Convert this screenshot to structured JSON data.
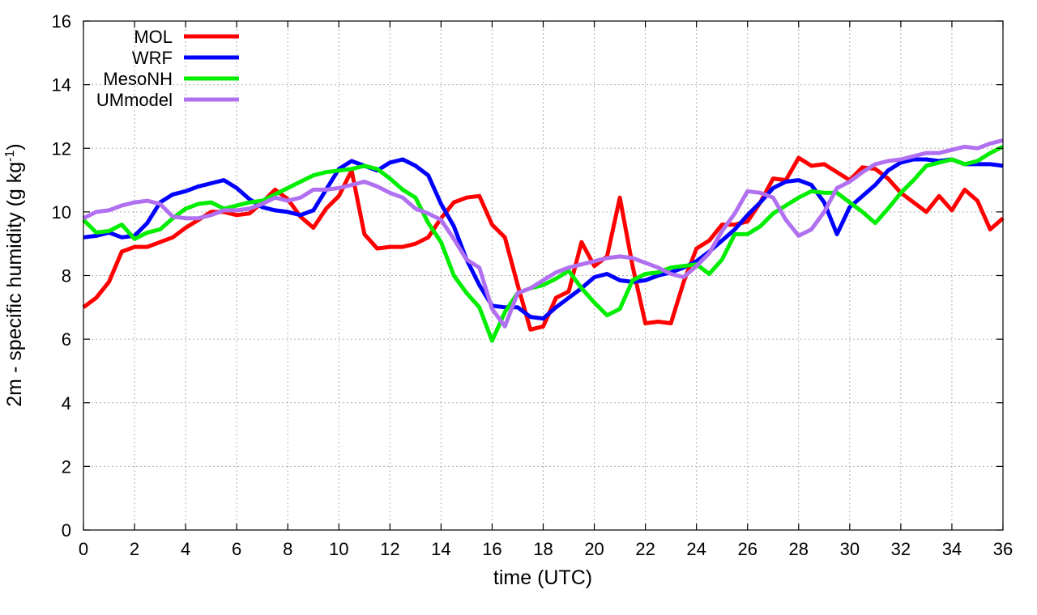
{
  "chart_data": {
    "type": "line",
    "xlabel": "time (UTC)",
    "ylabel": {
      "main": "2m - specific humidity (g kg",
      "sup": "-1",
      "end": ")"
    },
    "xlim": [
      0,
      36
    ],
    "ylim": [
      0,
      16
    ],
    "xticks": [
      0,
      2,
      4,
      6,
      8,
      10,
      12,
      14,
      16,
      18,
      20,
      22,
      24,
      26,
      28,
      30,
      32,
      34,
      36
    ],
    "yticks": [
      0,
      2,
      4,
      6,
      8,
      10,
      12,
      14,
      16
    ],
    "grid": true,
    "legend_position": "top-left",
    "series": [
      {
        "name": "MOL",
        "color": "#ff0000",
        "x": [
          0,
          0.5,
          1,
          1.5,
          2,
          2.5,
          3,
          3.5,
          4,
          4.5,
          5,
          5.5,
          6,
          6.5,
          7,
          7.5,
          8,
          8.5,
          9,
          9.5,
          10,
          10.5,
          11,
          11.5,
          12,
          12.5,
          13,
          13.5,
          14,
          14.5,
          15,
          15.5,
          16,
          16.5,
          17,
          17.5,
          18,
          18.5,
          19,
          19.5,
          20,
          20.5,
          21,
          21.5,
          22,
          22.5,
          23,
          23.5,
          24,
          24.5,
          25,
          25.5,
          26,
          26.5,
          27,
          27.5,
          28,
          28.5,
          29,
          29.5,
          30,
          30.5,
          31,
          31.5,
          32,
          32.5,
          33,
          33.5,
          34,
          34.5,
          35,
          35.5,
          36
        ],
        "y": [
          7.0,
          7.3,
          7.8,
          8.75,
          8.9,
          8.9,
          9.05,
          9.2,
          9.5,
          9.75,
          10.0,
          10.0,
          9.9,
          9.95,
          10.3,
          10.7,
          10.4,
          9.85,
          9.5,
          10.1,
          10.5,
          11.3,
          9.3,
          8.85,
          8.9,
          8.9,
          9.0,
          9.2,
          9.8,
          10.3,
          10.45,
          10.5,
          9.6,
          9.2,
          7.7,
          6.3,
          6.4,
          7.3,
          7.5,
          9.05,
          8.3,
          8.6,
          10.45,
          8.3,
          6.5,
          6.55,
          6.5,
          7.8,
          8.85,
          9.1,
          9.6,
          9.6,
          9.7,
          10.3,
          11.05,
          11.0,
          11.7,
          11.45,
          11.5,
          11.25,
          11.0,
          11.4,
          11.35,
          11.05,
          10.6,
          10.3,
          10.0,
          10.5,
          10.05,
          10.7,
          10.35,
          9.45,
          9.8
        ]
      },
      {
        "name": "WRF",
        "color": "#0000ff",
        "x": [
          0,
          0.5,
          1,
          1.5,
          2,
          2.5,
          3,
          3.5,
          4,
          4.5,
          5,
          5.5,
          6,
          6.5,
          7,
          7.5,
          8,
          8.5,
          9,
          9.5,
          10,
          10.5,
          11,
          11.5,
          12,
          12.5,
          13,
          13.5,
          14,
          14.5,
          15,
          15.5,
          16,
          16.5,
          17,
          17.5,
          18,
          18.5,
          19,
          19.5,
          20,
          20.5,
          21,
          21.5,
          22,
          22.5,
          23,
          23.5,
          24,
          24.5,
          25,
          25.5,
          26,
          26.5,
          27,
          27.5,
          28,
          28.5,
          29,
          29.5,
          30,
          30.5,
          31,
          31.5,
          32,
          32.5,
          33,
          33.5,
          34,
          34.5,
          35,
          35.5,
          36
        ],
        "y": [
          9.2,
          9.25,
          9.35,
          9.2,
          9.25,
          9.65,
          10.3,
          10.55,
          10.65,
          10.8,
          10.9,
          11.0,
          10.75,
          10.4,
          10.15,
          10.05,
          10.0,
          9.9,
          10.05,
          10.7,
          11.35,
          11.6,
          11.45,
          11.3,
          11.55,
          11.65,
          11.45,
          11.15,
          10.25,
          9.55,
          8.5,
          7.7,
          7.05,
          7.0,
          7.0,
          6.7,
          6.65,
          7.0,
          7.3,
          7.6,
          7.95,
          8.05,
          7.85,
          7.8,
          7.85,
          8.0,
          8.1,
          8.25,
          8.45,
          8.75,
          9.1,
          9.45,
          9.9,
          10.3,
          10.75,
          10.95,
          11.0,
          10.85,
          10.3,
          9.3,
          10.15,
          10.5,
          10.85,
          11.3,
          11.55,
          11.65,
          11.65,
          11.6,
          11.65,
          11.5,
          11.5,
          11.5,
          11.45
        ]
      },
      {
        "name": "MesoNH",
        "color": "#00ee00",
        "x": [
          0,
          0.5,
          1,
          1.5,
          2,
          2.5,
          3,
          3.5,
          4,
          4.5,
          5,
          5.5,
          6,
          6.5,
          7,
          7.5,
          8,
          8.5,
          9,
          9.5,
          10,
          10.5,
          11,
          11.5,
          12,
          12.5,
          13,
          13.5,
          14,
          14.5,
          15,
          15.5,
          16,
          16.5,
          17,
          17.5,
          18,
          18.5,
          19,
          19.5,
          20,
          20.5,
          21,
          21.5,
          22,
          22.5,
          23,
          23.5,
          24,
          24.5,
          25,
          25.5,
          26,
          26.5,
          27,
          27.5,
          28,
          28.5,
          29,
          29.5,
          30,
          30.5,
          31,
          31.5,
          32,
          32.5,
          33,
          33.5,
          34,
          34.5,
          35,
          35.5,
          36
        ],
        "y": [
          9.75,
          9.35,
          9.4,
          9.6,
          9.15,
          9.35,
          9.45,
          9.8,
          10.1,
          10.25,
          10.3,
          10.1,
          10.2,
          10.3,
          10.35,
          10.55,
          10.75,
          10.95,
          11.15,
          11.25,
          11.3,
          11.35,
          11.45,
          11.35,
          11.05,
          10.7,
          10.45,
          9.65,
          9.05,
          8.0,
          7.45,
          7.0,
          5.95,
          6.85,
          7.45,
          7.6,
          7.7,
          7.9,
          8.15,
          7.6,
          7.15,
          6.75,
          6.95,
          7.85,
          8.05,
          8.1,
          8.25,
          8.3,
          8.35,
          8.05,
          8.5,
          9.3,
          9.3,
          9.55,
          9.95,
          10.2,
          10.45,
          10.65,
          10.6,
          10.6,
          10.3,
          10.0,
          9.65,
          10.1,
          10.6,
          11.0,
          11.45,
          11.55,
          11.65,
          11.5,
          11.6,
          11.85,
          12.05
        ]
      },
      {
        "name": "UMmodel",
        "color": "#b070f0",
        "x": [
          0,
          0.5,
          1,
          1.5,
          2,
          2.5,
          3,
          3.5,
          4,
          4.5,
          5,
          5.5,
          6,
          6.5,
          7,
          7.5,
          8,
          8.5,
          9,
          9.5,
          10,
          10.5,
          11,
          11.5,
          12,
          12.5,
          13,
          13.5,
          14,
          14.5,
          15,
          15.5,
          16,
          16.5,
          17,
          17.5,
          18,
          18.5,
          19,
          19.5,
          20,
          20.5,
          21,
          21.5,
          22,
          22.5,
          23,
          23.5,
          24,
          24.5,
          25,
          25.5,
          26,
          26.5,
          27,
          27.5,
          28,
          28.5,
          29,
          29.5,
          30,
          30.5,
          31,
          31.5,
          32,
          32.5,
          33,
          33.5,
          34,
          34.5,
          35,
          35.5,
          36
        ],
        "y": [
          9.8,
          10.0,
          10.05,
          10.2,
          10.3,
          10.35,
          10.25,
          9.85,
          9.8,
          9.8,
          9.9,
          10.05,
          10.05,
          10.1,
          10.25,
          10.45,
          10.35,
          10.45,
          10.7,
          10.7,
          10.75,
          10.85,
          10.95,
          10.8,
          10.6,
          10.45,
          10.1,
          9.95,
          9.75,
          9.15,
          8.5,
          8.25,
          6.95,
          6.4,
          7.45,
          7.6,
          7.85,
          8.1,
          8.25,
          8.35,
          8.45,
          8.55,
          8.6,
          8.55,
          8.4,
          8.25,
          8.05,
          7.95,
          8.3,
          8.7,
          9.4,
          9.95,
          10.65,
          10.6,
          10.45,
          9.75,
          9.25,
          9.45,
          10.0,
          10.75,
          10.95,
          11.25,
          11.5,
          11.6,
          11.65,
          11.75,
          11.85,
          11.85,
          11.95,
          12.05,
          12.0,
          12.15,
          12.25
        ]
      }
    ]
  }
}
